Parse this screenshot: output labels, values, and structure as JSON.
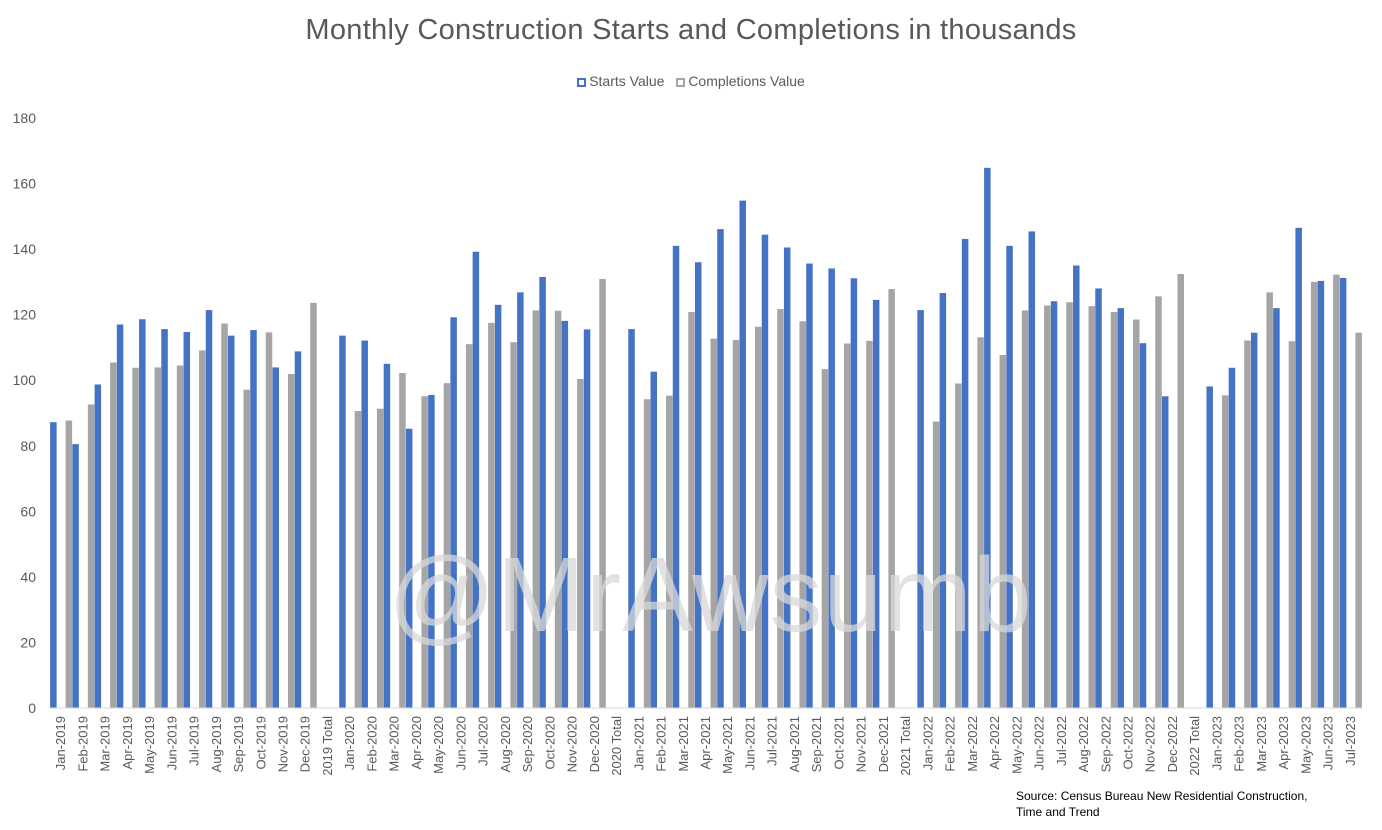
{
  "chart_data": {
    "type": "bar",
    "title": "Monthly Construction Starts and Completions in thousands",
    "ylim": [
      0,
      180
    ],
    "yticks": [
      0,
      20,
      40,
      60,
      80,
      100,
      120,
      140,
      160,
      180
    ],
    "grid": false,
    "legend_position": "top-center",
    "categories": [
      "Jan-2019",
      "Feb-2019",
      "Mar-2019",
      "Apr-2019",
      "May-2019",
      "Jun-2019",
      "Jul-2019",
      "Aug-2019",
      "Sep-2019",
      "Oct-2019",
      "Nov-2019",
      "Dec-2019",
      "2019 Total",
      "Jan-2020",
      "Feb-2020",
      "Mar-2020",
      "Apr-2020",
      "May-2020",
      "Jun-2020",
      "Jul-2020",
      "Aug-2020",
      "Sep-2020",
      "Oct-2020",
      "Nov-2020",
      "Dec-2020",
      "2020 Total",
      "Jan-2021",
      "Feb-2021",
      "Mar-2021",
      "Apr-2021",
      "May-2021",
      "Jun-2021",
      "Jul-2021",
      "Aug-2021",
      "Sep-2021",
      "Oct-2021",
      "Nov-2021",
      "Dec-2021",
      "2021 Total",
      "Jan-2022",
      "Feb-2022",
      "Mar-2022",
      "Apr-2022",
      "May-2022",
      "Jun-2022",
      "Jul-2022",
      "Aug-2022",
      "Sep-2022",
      "Oct-2022",
      "Nov-2022",
      "Dec-2022",
      "2022 Total",
      "Jan-2023",
      "Feb-2023",
      "Mar-2023",
      "Apr-2023",
      "May-2023",
      "Jun-2023",
      "Jul-2023"
    ],
    "series": [
      {
        "name": "Starts Value",
        "color": "#4472c4",
        "values": [
          87.2,
          80.5,
          98.7,
          117.0,
          118.6,
          115.6,
          114.7,
          121.4,
          113.6,
          115.3,
          103.9,
          108.8,
          null,
          113.6,
          112.1,
          105.0,
          85.2,
          95.5,
          119.2,
          139.2,
          123.0,
          126.8,
          131.5,
          118.1,
          115.5,
          null,
          115.6,
          102.6,
          141.0,
          136.0,
          146.1,
          154.8,
          144.4,
          140.5,
          135.6,
          134.1,
          131.1,
          124.5,
          null,
          121.4,
          126.6,
          143.1,
          164.8,
          141.0,
          145.4,
          124.1,
          135.0,
          128.0,
          122.0,
          111.3,
          95.1,
          null,
          98.1,
          103.8,
          114.5,
          122.0,
          146.5,
          130.3,
          131.2
        ]
      },
      {
        "name": "Completions Value",
        "color": "#a5a5a5",
        "values": [
          87.7,
          92.6,
          105.4,
          103.8,
          103.9,
          104.5,
          109.1,
          117.3,
          97.1,
          114.6,
          101.9,
          123.6,
          null,
          90.6,
          91.3,
          102.2,
          95.1,
          99.1,
          111.0,
          117.5,
          111.6,
          121.3,
          121.2,
          100.4,
          130.9,
          null,
          94.2,
          95.3,
          120.8,
          112.7,
          112.3,
          116.3,
          121.7,
          118.0,
          103.4,
          111.2,
          112.0,
          127.8,
          null,
          87.4,
          99.0,
          113.1,
          107.7,
          121.3,
          122.8,
          123.8,
          122.6,
          120.8,
          118.5,
          125.6,
          132.4,
          null,
          95.4,
          112.1,
          126.8,
          111.9,
          130.0,
          132.2,
          114.5
        ]
      }
    ]
  },
  "legend": {
    "starts_label": "Starts Value",
    "completions_label": "Completions Value"
  },
  "watermark": "@MrAwsumb",
  "source": {
    "line1": "Source: Census Bureau New Residential Construction,",
    "line2": "Time and Trend"
  }
}
